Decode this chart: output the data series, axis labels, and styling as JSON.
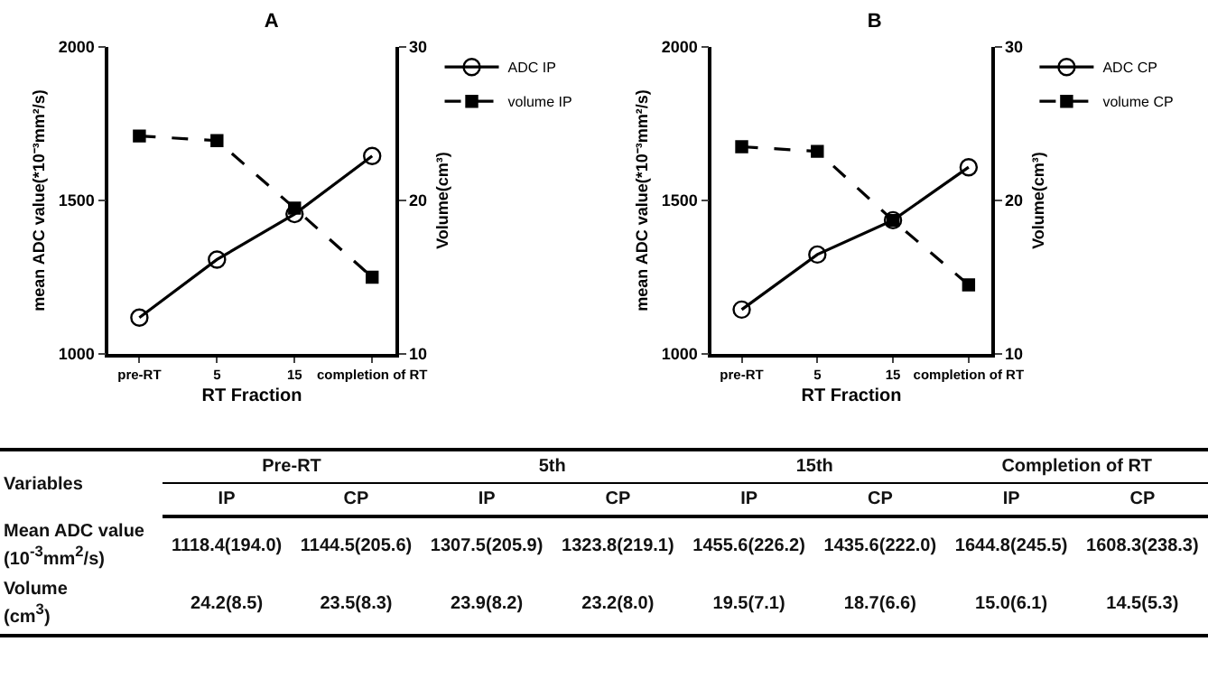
{
  "chart_data": [
    {
      "type": "line",
      "title": "A",
      "xlabel": "RT Fraction",
      "ylabel": "mean ADC value(*10⁻³mm²/s)",
      "y2label": "Volume(cm³)",
      "categories": [
        "pre-RT",
        "5",
        "15",
        "completion of RT"
      ],
      "series": [
        {
          "name": "ADC IP",
          "color": "#000000",
          "values": [
            1118.4,
            1307.5,
            1455.6,
            1644.8
          ],
          "marker": "circle",
          "line_style": "solid"
        },
        {
          "name": "volume IP",
          "color": "#000000",
          "values": [
            24.2,
            23.9,
            19.5,
            15.0
          ],
          "axis": "y2",
          "marker": "square",
          "line_style": "dashed"
        }
      ],
      "ylim": [
        1000,
        2000
      ],
      "yticks": [
        1000,
        1500,
        2000
      ],
      "y2lim": [
        10,
        30
      ],
      "y2ticks": [
        10,
        20,
        30
      ],
      "grid": false,
      "legend": "top right"
    },
    {
      "type": "line",
      "title": "B",
      "xlabel": "RT Fraction",
      "ylabel": "mean ADC value(*10⁻³mm²/s)",
      "y2label": "Volume(cm³)",
      "categories": [
        "pre-RT",
        "5",
        "15",
        "completion of RT"
      ],
      "series": [
        {
          "name": "ADC CP",
          "color": "#000000",
          "values": [
            1144.5,
            1323.8,
            1435.6,
            1608.3
          ],
          "marker": "circle",
          "line_style": "solid"
        },
        {
          "name": "volume CP",
          "color": "#000000",
          "values": [
            23.5,
            23.2,
            18.7,
            14.5
          ],
          "axis": "y2",
          "marker": "square",
          "line_style": "dashed"
        }
      ],
      "ylim": [
        1000,
        2000
      ],
      "yticks": [
        1000,
        1500,
        2000
      ],
      "y2lim": [
        10,
        30
      ],
      "y2ticks": [
        10,
        20,
        30
      ],
      "grid": false,
      "legend": "top right"
    },
    {
      "type": "other",
      "cell_labels": [
        [
          "Variables",
          "Pre-RT",
          null,
          "5th",
          null,
          "15th",
          null,
          "Completion of RT",
          null
        ],
        [
          null,
          "IP",
          "CP",
          "IP",
          "CP",
          "IP",
          "CP",
          "IP",
          "CP"
        ],
        [
          "Mean ADC value\n(10$^{-3}$mm$^{2}$/s)",
          "1118.4(194.0)",
          "1144.5(205.6)",
          "1307.5(205.9)",
          "1323.8(219.1)",
          "1455.6(226.2)",
          "1435.6(222.0)",
          "1644.8(245.5)",
          "1608.3(238.3)"
        ],
        [
          "Volume\n(cm$^{3}$)",
          "24.2(8.5)",
          "23.5(8.3)",
          "23.9(8.2)",
          "23.2(8.0)",
          "19.5(7.1)",
          "18.7(6.6)",
          "15.0(6.1)",
          "14.5(5.3)"
        ]
      ]
    }
  ]
}
